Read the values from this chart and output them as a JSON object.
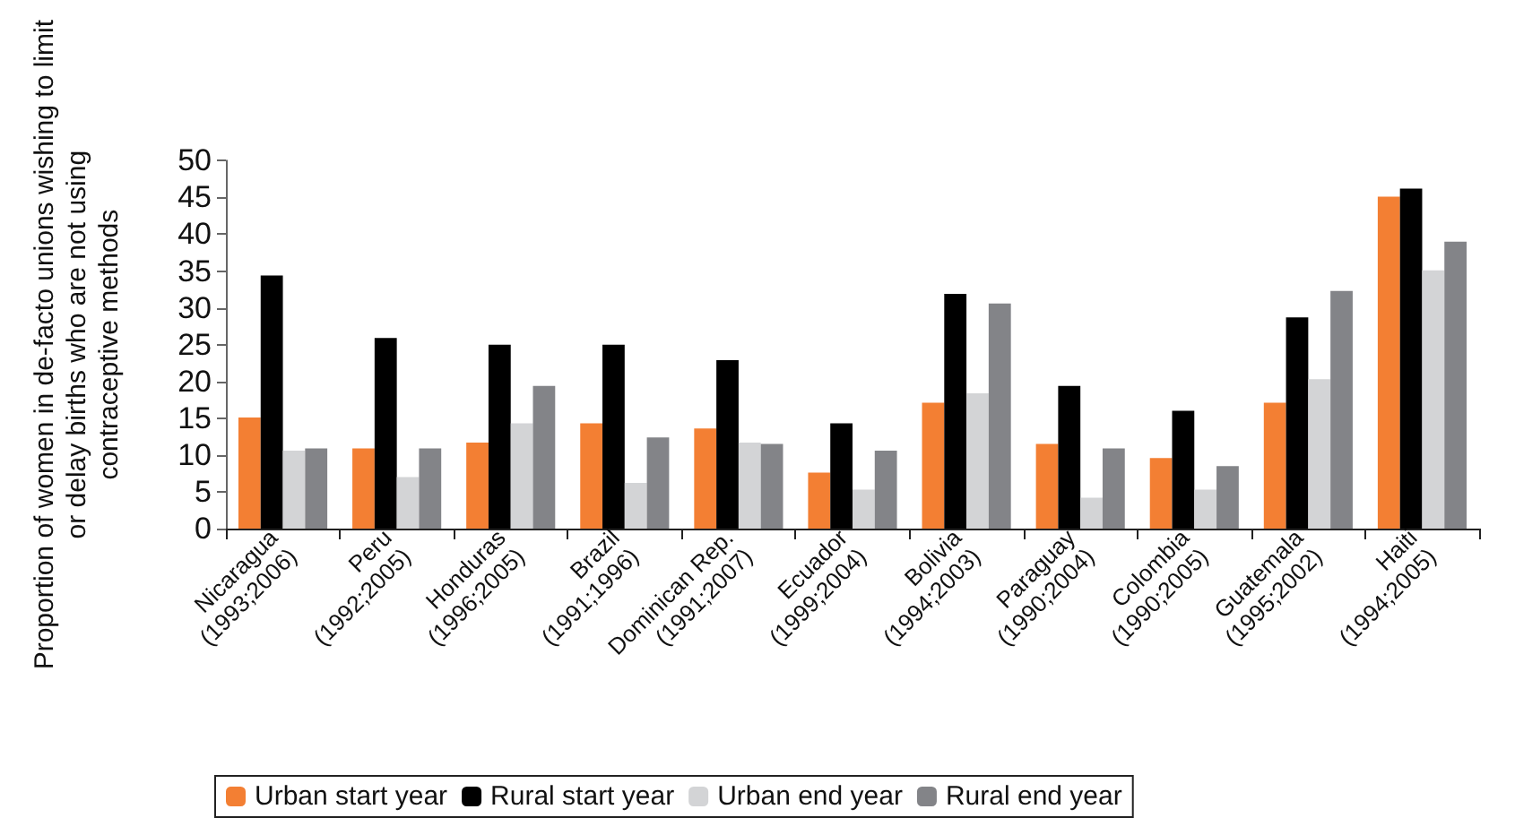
{
  "chart_data": {
    "type": "bar",
    "ylabel": "Proportion of women in de-facto unions wishing to limit\nor delay births who are not using\ncontraceptive methods",
    "categories": [
      "Nicaragua\n(1993;2006)",
      "Peru\n(1992;2005)",
      "Honduras\n(1996;2005)",
      "Brazil\n(1991;1996)",
      "Dominican Rep.\n(1991;2007)",
      "Ecuador\n(1999;2004)",
      "Bolivia\n(1994;2003)",
      "Paraguay\n(1990;2004)",
      "Colombia\n(1990;2005)",
      "Guatemala\n(1995;2002)",
      "Haiti\n(1994;2005)"
    ],
    "series": [
      {
        "name": "Urban start year",
        "color": "#f37f33",
        "values": [
          15.1,
          10.9,
          11.7,
          14.3,
          13.6,
          7.6,
          17.1,
          11.5,
          9.6,
          17.1,
          45.1
        ]
      },
      {
        "name": "Rural start year",
        "color": "#000000",
        "values": [
          34.4,
          25.9,
          25,
          25,
          22.9,
          14.3,
          31.9,
          19.4,
          16,
          28.7,
          46.2
        ]
      },
      {
        "name": "Urban end year",
        "color": "#d3d4d6",
        "values": [
          10.6,
          7,
          14.3,
          6.2,
          11.7,
          5.3,
          18.4,
          4.2,
          5.3,
          20.3,
          35.1
        ]
      },
      {
        "name": "Rural end year",
        "color": "#838488",
        "values": [
          10.9,
          10.9,
          19.4,
          12.4,
          11.5,
          10.6,
          30.6,
          10.9,
          8.5,
          32.3,
          39
        ]
      }
    ],
    "ylim": [
      0,
      50
    ],
    "yticks": [
      0,
      5,
      10,
      15,
      20,
      25,
      30,
      35,
      40,
      45,
      50
    ],
    "grid": false,
    "legend": "bottom"
  }
}
